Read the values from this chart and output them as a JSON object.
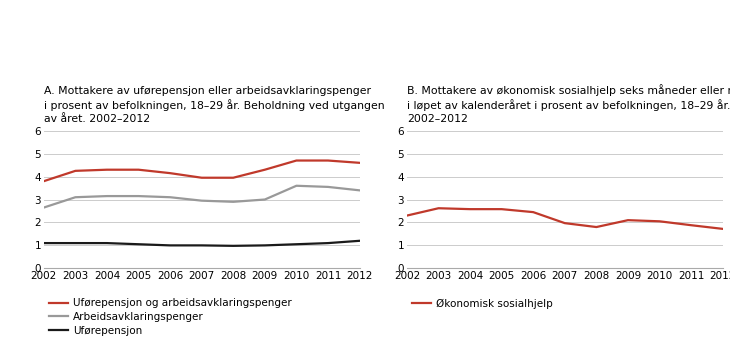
{
  "years": [
    2002,
    2003,
    2004,
    2005,
    2006,
    2007,
    2008,
    2009,
    2010,
    2011,
    2012
  ],
  "panel_a": {
    "title_line1": "A. Mottakere av uførepensjon eller arbeidsavklaringspenger",
    "title_line2": "i prosent av befolkningen, 18–29 år. Beholdning ved utgangen",
    "title_line3": "av året. 2002–2012",
    "series": {
      "ufore_og_aap": {
        "label": "Uførepensjon og arbeidsavklaringspenger",
        "color": "#c0392b",
        "values": [
          3.8,
          4.25,
          4.3,
          4.3,
          4.15,
          3.95,
          3.95,
          4.3,
          4.7,
          4.7,
          4.6
        ]
      },
      "aap": {
        "label": "Arbeidsavklaringspenger",
        "color": "#999999",
        "values": [
          2.65,
          3.1,
          3.15,
          3.15,
          3.1,
          2.95,
          2.9,
          3.0,
          3.6,
          3.55,
          3.4
        ]
      },
      "ufore": {
        "label": "Uførepensjon",
        "color": "#1a1a1a",
        "values": [
          1.1,
          1.1,
          1.1,
          1.05,
          1.0,
          1.0,
          0.98,
          1.0,
          1.05,
          1.1,
          1.2
        ]
      }
    },
    "ylim": [
      0,
      6
    ],
    "yticks": [
      0,
      1,
      2,
      3,
      4,
      5,
      6
    ]
  },
  "panel_b": {
    "title_line1": "B. Mottakere av økonomisk sosialhjelp seks måneder eller mer",
    "title_line2": "i løpet av kalenderåret i prosent av befolkningen, 18–29 år.",
    "title_line3": "2002–2012",
    "series": {
      "sosialhjelp": {
        "label": "Økonomisk sosialhjelp",
        "color": "#c0392b",
        "values": [
          2.3,
          2.62,
          2.58,
          2.58,
          2.45,
          1.97,
          1.8,
          2.1,
          2.05,
          1.88,
          1.72
        ]
      }
    },
    "ylim": [
      0,
      6
    ],
    "yticks": [
      0,
      1,
      2,
      3,
      4,
      5,
      6
    ]
  },
  "background_color": "#ffffff",
  "grid_color": "#cccccc",
  "line_width": 1.6,
  "legend_fontsize": 7.5,
  "title_fontsize": 7.8,
  "tick_fontsize": 7.5
}
